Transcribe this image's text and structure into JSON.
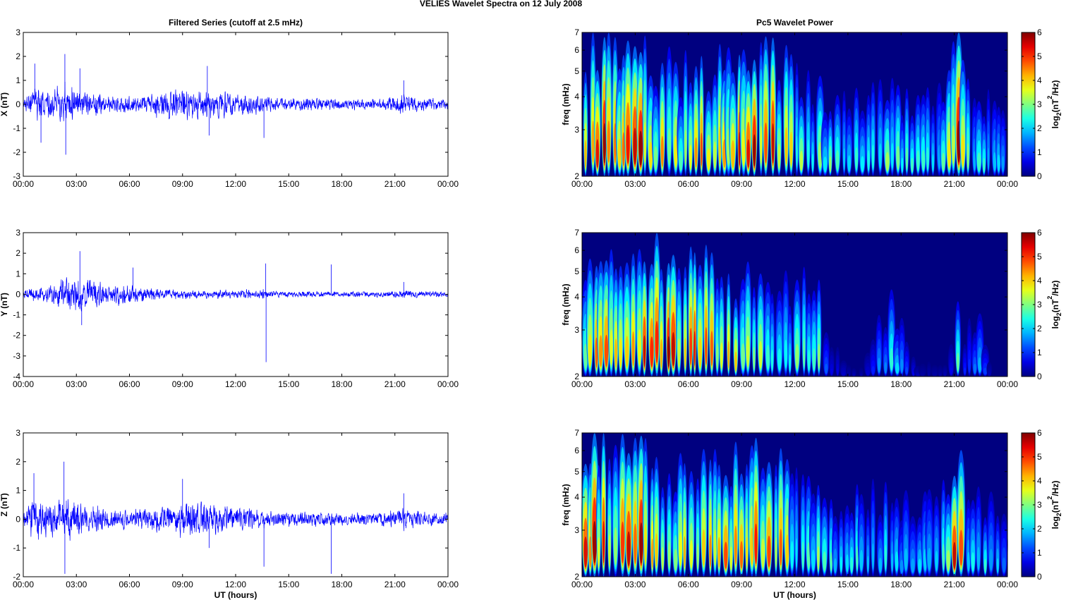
{
  "figure": {
    "title": "VELIES Wavelet Spectra on 12 July      2008"
  },
  "chart_data": [
    {
      "type": "line",
      "title": "Filtered Series (cutoff at 2.5 mHz)",
      "xlabel": "",
      "ylabel": "X (nT)",
      "xticks": [
        "00:00",
        "03:00",
        "06:00",
        "09:00",
        "12:00",
        "15:00",
        "18:00",
        "21:00",
        "00:00"
      ],
      "xlim": [
        0,
        24
      ],
      "ylim": [
        -3,
        3
      ],
      "yticks": [
        3,
        2,
        1,
        0,
        -1,
        -2,
        -3
      ],
      "line_color": "#0000ff",
      "envelope": {
        "hours": [
          0,
          0.5,
          1,
          1.5,
          2,
          2.5,
          3,
          3.5,
          4,
          5,
          6,
          7,
          8,
          9,
          10,
          10.5,
          11,
          12,
          13,
          13.5,
          14,
          15,
          16,
          17,
          18,
          19,
          20,
          21,
          21.5,
          22,
          23,
          24
        ],
        "amplitude": [
          0.3,
          0.9,
          1.1,
          0.8,
          1.2,
          1.3,
          0.9,
          0.8,
          0.7,
          0.5,
          0.45,
          0.6,
          0.8,
          0.9,
          0.9,
          0.85,
          0.8,
          0.6,
          0.6,
          0.5,
          0.4,
          0.35,
          0.4,
          0.35,
          0.3,
          0.3,
          0.3,
          0.45,
          0.6,
          0.4,
          0.35,
          0.3
        ]
      },
      "spikes": [
        {
          "h": 0.65,
          "v": 1.7
        },
        {
          "h": 1.0,
          "v": -1.6
        },
        {
          "h": 2.35,
          "v": 2.1
        },
        {
          "h": 2.4,
          "v": -2.1
        },
        {
          "h": 3.2,
          "v": 1.5
        },
        {
          "h": 10.4,
          "v": 1.6
        },
        {
          "h": 10.5,
          "v": -1.3
        },
        {
          "h": 13.6,
          "v": -1.4
        },
        {
          "h": 21.5,
          "v": 1.0
        }
      ]
    },
    {
      "type": "line",
      "title": "",
      "xlabel": "",
      "ylabel": "Y (nT)",
      "xticks": [
        "00:00",
        "03:00",
        "06:00",
        "09:00",
        "12:00",
        "15:00",
        "18:00",
        "21:00",
        "00:00"
      ],
      "xlim": [
        0,
        24
      ],
      "ylim": [
        -4,
        3
      ],
      "yticks": [
        3,
        2,
        1,
        0,
        -1,
        -2,
        -3,
        -4
      ],
      "line_color": "#0000ff",
      "envelope": {
        "hours": [
          0,
          0.5,
          1,
          1.5,
          2,
          2.5,
          3,
          3.5,
          4,
          5,
          6,
          7,
          8,
          9,
          10,
          11,
          12,
          13,
          13.5,
          14,
          15,
          16,
          17,
          18,
          19,
          20,
          21,
          21.5,
          22,
          23,
          24
        ],
        "amplitude": [
          0.3,
          0.5,
          0.5,
          0.6,
          0.9,
          1.1,
          1.2,
          1.0,
          0.9,
          0.8,
          0.6,
          0.45,
          0.35,
          0.3,
          0.3,
          0.28,
          0.3,
          0.3,
          0.35,
          0.25,
          0.2,
          0.2,
          0.2,
          0.2,
          0.2,
          0.2,
          0.2,
          0.3,
          0.25,
          0.2,
          0.2
        ]
      },
      "spikes": [
        {
          "h": 3.2,
          "v": 2.1
        },
        {
          "h": 3.3,
          "v": -1.5
        },
        {
          "h": 6.2,
          "v": 1.3
        },
        {
          "h": 13.7,
          "v": 1.5
        },
        {
          "h": 13.72,
          "v": -3.3
        },
        {
          "h": 17.4,
          "v": 1.45
        },
        {
          "h": 21.5,
          "v": 0.6
        }
      ]
    },
    {
      "type": "line",
      "title": "",
      "xlabel": "UT (hours)",
      "ylabel": "Z (nT)",
      "xticks": [
        "00:00",
        "03:00",
        "06:00",
        "09:00",
        "12:00",
        "15:00",
        "18:00",
        "21:00",
        "00:00"
      ],
      "xlim": [
        0,
        24
      ],
      "ylim": [
        -2,
        3
      ],
      "yticks": [
        3,
        2,
        1,
        0,
        -1,
        -2
      ],
      "line_color": "#0000ff",
      "envelope": {
        "hours": [
          0,
          0.5,
          1,
          1.5,
          2,
          2.5,
          3,
          3.5,
          4,
          5,
          6,
          7,
          8,
          9,
          10,
          10.5,
          11,
          12,
          13,
          13.5,
          14,
          15,
          16,
          17,
          18,
          19,
          20,
          21,
          21.5,
          22,
          23,
          24
        ],
        "amplitude": [
          0.3,
          0.9,
          1.0,
          0.8,
          1.1,
          1.2,
          0.9,
          0.8,
          0.7,
          0.5,
          0.45,
          0.55,
          0.7,
          0.8,
          0.8,
          0.75,
          0.7,
          0.55,
          0.5,
          0.5,
          0.4,
          0.35,
          0.35,
          0.35,
          0.3,
          0.3,
          0.3,
          0.45,
          0.55,
          0.4,
          0.35,
          0.3
        ]
      },
      "spikes": [
        {
          "h": 0.6,
          "v": 1.6
        },
        {
          "h": 2.3,
          "v": 2.0
        },
        {
          "h": 2.35,
          "v": -1.9
        },
        {
          "h": 9.0,
          "v": 1.4
        },
        {
          "h": 10.5,
          "v": -1.0
        },
        {
          "h": 13.6,
          "v": -1.65
        },
        {
          "h": 17.4,
          "v": -1.9
        },
        {
          "h": 21.5,
          "v": 0.9
        }
      ]
    },
    {
      "type": "heatmap",
      "title": "Pc5 Wavelet Power",
      "xlabel": "",
      "ylabel": "freq (mHz)",
      "xticks": [
        "00:00",
        "03:00",
        "06:00",
        "09:00",
        "12:00",
        "15:00",
        "18:00",
        "21:00",
        "00:00"
      ],
      "xlim": [
        0,
        24
      ],
      "ylim": [
        2,
        7
      ],
      "yticks": [
        7,
        6,
        5,
        4,
        3,
        2
      ],
      "colorbar": {
        "ticks": [
          6,
          5,
          4,
          3,
          2,
          1,
          0
        ],
        "clim": [
          0,
          6
        ],
        "label_text": "log",
        "label_sub": "2",
        "label_open": "(nT",
        "label_sup": "2",
        "label_close": "/Hz)"
      },
      "activity": {
        "hours": [
          0,
          0.5,
          1,
          1.5,
          2,
          2.5,
          3,
          3.5,
          4,
          4.5,
          5,
          5.5,
          6,
          6.5,
          7,
          7.5,
          8,
          8.5,
          9,
          9.5,
          10,
          10.5,
          11,
          11.5,
          12,
          12.5,
          13,
          13.5,
          14,
          15,
          16,
          17,
          17.5,
          18,
          19,
          20,
          20.5,
          21,
          21.3,
          21.6,
          22,
          22.5,
          23,
          24
        ],
        "level": [
          0.75,
          1.0,
          1.0,
          0.95,
          0.85,
          0.9,
          1.0,
          0.95,
          0.85,
          0.8,
          0.75,
          0.7,
          0.75,
          0.8,
          0.8,
          0.75,
          0.8,
          0.85,
          0.95,
          0.95,
          1.0,
          0.9,
          0.85,
          0.75,
          0.65,
          0.6,
          0.6,
          0.55,
          0.5,
          0.45,
          0.45,
          0.5,
          0.5,
          0.45,
          0.45,
          0.45,
          0.5,
          0.9,
          0.95,
          0.6,
          0.45,
          0.45,
          0.4,
          0.3
        ]
      }
    },
    {
      "type": "heatmap",
      "title": "",
      "xlabel": "",
      "ylabel": "freq (mHz)",
      "xticks": [
        "00:00",
        "03:00",
        "06:00",
        "09:00",
        "12:00",
        "15:00",
        "18:00",
        "21:00",
        "00:00"
      ],
      "xlim": [
        0,
        24
      ],
      "ylim": [
        2,
        7
      ],
      "yticks": [
        7,
        6,
        5,
        4,
        3,
        2
      ],
      "colorbar": {
        "ticks": [
          6,
          5,
          4,
          3,
          2,
          1,
          0
        ],
        "clim": [
          0,
          6
        ],
        "label_text": "log",
        "label_sub": "2",
        "label_open": "(nT",
        "label_sup": "2",
        "label_close": "/Hz)"
      },
      "activity": {
        "hours": [
          0,
          0.5,
          1,
          1.5,
          2,
          2.5,
          3,
          3.5,
          4,
          4.5,
          5,
          5.5,
          6,
          6.5,
          7,
          7.5,
          8,
          8.5,
          9,
          10,
          11,
          12,
          12.5,
          13,
          13.3,
          13.5,
          13.7,
          14,
          15,
          16,
          17,
          17.5,
          18,
          19,
          20,
          20.5,
          21,
          21.3,
          21.6,
          22,
          22.5,
          23,
          24
        ],
        "level": [
          0.6,
          0.8,
          0.85,
          0.85,
          0.9,
          0.95,
          1.0,
          1.0,
          1.0,
          0.95,
          0.95,
          0.9,
          0.9,
          0.85,
          0.85,
          0.8,
          0.75,
          0.7,
          0.65,
          0.65,
          0.6,
          0.6,
          0.6,
          0.6,
          0.75,
          0.5,
          0.3,
          0.15,
          0.05,
          0.05,
          0.35,
          0.4,
          0.3,
          0.05,
          0.05,
          0.05,
          0.2,
          0.55,
          0.2,
          0.25,
          0.3,
          0.05,
          0.0
        ]
      }
    },
    {
      "type": "heatmap",
      "title": "",
      "xlabel": "UT (hours)",
      "ylabel": "freq (mHz)",
      "xticks": [
        "00:00",
        "03:00",
        "06:00",
        "09:00",
        "12:00",
        "15:00",
        "18:00",
        "21:00",
        "00:00"
      ],
      "xlim": [
        0,
        24
      ],
      "ylim": [
        2,
        7
      ],
      "yticks": [
        7,
        6,
        5,
        4,
        3,
        2
      ],
      "colorbar": {
        "ticks": [
          6,
          5,
          4,
          3,
          2,
          1,
          0
        ],
        "clim": [
          0,
          6
        ],
        "label_text": "log",
        "label_sub": "2",
        "label_open": "(nT",
        "label_sup": "2",
        "label_close": "/Hz)"
      },
      "activity": {
        "hours": [
          0,
          0.5,
          1,
          1.5,
          2,
          2.5,
          3,
          3.5,
          4,
          4.5,
          5,
          5.5,
          6,
          6.5,
          7,
          7.5,
          8,
          8.5,
          9,
          9.5,
          10,
          10.5,
          11,
          11.5,
          12,
          12.5,
          13,
          13.5,
          14,
          15,
          16,
          17,
          17.5,
          18,
          19,
          20,
          20.5,
          21,
          21.3,
          21.6,
          22,
          22.5,
          23,
          24
        ],
        "level": [
          0.75,
          1.0,
          1.0,
          0.95,
          0.85,
          0.9,
          1.0,
          0.9,
          0.85,
          0.8,
          0.75,
          0.7,
          0.75,
          0.8,
          0.8,
          0.75,
          0.8,
          0.85,
          0.95,
          0.95,
          1.0,
          0.9,
          0.85,
          0.7,
          0.6,
          0.55,
          0.55,
          0.5,
          0.5,
          0.45,
          0.45,
          0.5,
          0.5,
          0.45,
          0.45,
          0.45,
          0.5,
          0.9,
          0.95,
          0.6,
          0.45,
          0.45,
          0.4,
          0.3
        ]
      }
    }
  ]
}
